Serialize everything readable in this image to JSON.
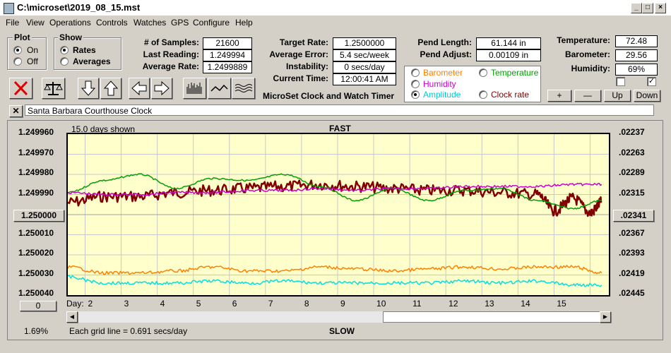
{
  "window": {
    "title": "C:\\microset\\2019_08_15.mst",
    "minimize": "_",
    "maximize": "□",
    "close": "×"
  },
  "menu": [
    "File",
    "View",
    "Operations",
    "Controls",
    "Watches",
    "GPS",
    "Configure",
    "Help"
  ],
  "plot_group": {
    "label": "Plot",
    "options": [
      "On",
      "Off"
    ],
    "selected": "On"
  },
  "show_group": {
    "label": "Show",
    "options": [
      "Rates",
      "Averages"
    ],
    "selected": "Rates"
  },
  "stats": {
    "samples_label": "# of Samples:",
    "samples": "21600",
    "last_reading_label": "Last Reading:",
    "last_reading": "1.249994",
    "avg_rate_label": "Average Rate:",
    "avg_rate": "1.2499889"
  },
  "rates": {
    "target_label": "Target Rate:",
    "target": "1.2500000",
    "avg_error_label": "Average Error:",
    "avg_error": "5.4 sec/week",
    "instability_label": "Instability:",
    "instability": "0 secs/day",
    "current_time_label": "Current Time:",
    "current_time": "12:00:41 AM"
  },
  "pendulum": {
    "length_label": "Pend Length:",
    "length": "61.144 in",
    "adjust_label": "Pend Adjust:",
    "adjust": "0.00109 in"
  },
  "environment": {
    "temperature_label": "Temperature:",
    "temperature": "72.48",
    "barometer_label": "Barometer:",
    "barometer": "29.56",
    "humidity_label": "Humidity:",
    "humidity": "69%"
  },
  "app_name": "MicroSet Clock and Watch Timer",
  "series_selector": {
    "options": [
      {
        "label": "Barometer",
        "color": "#ff8000"
      },
      {
        "label": "Temperature",
        "color": "#00a000"
      },
      {
        "label": "Humidity",
        "color": "#cc00cc"
      },
      {
        "label": "Amplitude",
        "color": "#00cccc"
      },
      {
        "label": "Clock rate",
        "color": "#800000"
      }
    ],
    "selected": "Amplitude"
  },
  "adjust_buttons": {
    "plus": "+",
    "minus": "—",
    "up": "Up",
    "down": "Down"
  },
  "clock_name": "Santa Barbara Courthouse Clock",
  "clear_button": "✕",
  "graph": {
    "days_shown": "15.0 days shown",
    "top_label": "FAST",
    "bottom_label": "SLOW",
    "left_ticks": [
      "1.249960",
      "1.249970",
      "1.249980",
      "1.249990",
      "1.250000",
      "1.250010",
      "1.250020",
      "1.250030",
      "1.250040"
    ],
    "right_ticks": [
      ".02237",
      ".02263",
      ".02289",
      ".02315",
      ".02341",
      ".02367",
      ".02393",
      ".02419",
      ".02445"
    ],
    "left_center_button": "1.250000",
    "right_center_button": ".02341",
    "day_label": "Day:",
    "day_ticks": [
      "2",
      "3",
      "4",
      "5",
      "6",
      "7",
      "8",
      "9",
      "10",
      "11",
      "12",
      "13",
      "14",
      "15"
    ],
    "zero_button": "0",
    "grid_note": "Each grid line = 0.691 secs/day",
    "percent": "1.69%"
  },
  "chart_data": {
    "type": "line",
    "x_label": "Day",
    "x_range": [
      1,
      16
    ],
    "y_left_range": [
      1.24996,
      1.25004
    ],
    "y_right_range": [
      0.02237,
      0.02445
    ],
    "series": [
      {
        "name": "Clock rate",
        "color": "#800000",
        "x": [
          1.0,
          2,
          3,
          4,
          5,
          6,
          7,
          8,
          9,
          10,
          11,
          12,
          13,
          14,
          14.5,
          15,
          15.5,
          15.8
        ],
        "y": [
          1.249994,
          1.249991,
          1.249991,
          1.249989,
          1.249988,
          1.249987,
          1.249986,
          1.249985,
          1.249986,
          1.249987,
          1.249988,
          1.249988,
          1.249989,
          1.24999,
          1.249998,
          1.249992,
          1.249999,
          1.249994
        ]
      },
      {
        "name": "Temperature",
        "color": "#00a000",
        "x": [
          1.0,
          2,
          3,
          4,
          5,
          6,
          7,
          8,
          9,
          10,
          11,
          12,
          13,
          14,
          15,
          15.8
        ],
        "y": [
          1.249989,
          1.249983,
          1.24998,
          1.249987,
          1.249982,
          1.249983,
          1.24998,
          1.249986,
          1.249993,
          1.249987,
          1.249993,
          1.249988,
          1.249987,
          1.249993,
          1.249997,
          1.249993
        ]
      },
      {
        "name": "Humidity",
        "color": "#cc00cc",
        "x": [
          1.0,
          2,
          3,
          4,
          5,
          6,
          7,
          8,
          9,
          10,
          11,
          12,
          13,
          14,
          15,
          15.8
        ],
        "y": [
          1.249989,
          1.24999,
          1.24999,
          1.249989,
          1.249989,
          1.249988,
          1.249988,
          1.249987,
          1.249988,
          1.249987,
          1.249987,
          1.249986,
          1.249986,
          1.249986,
          1.249985,
          1.249985
        ]
      },
      {
        "name": "Barometer",
        "color": "#ff8000",
        "x": [
          1.0,
          2,
          3,
          4,
          5,
          6,
          7,
          8,
          9,
          10,
          11,
          12,
          13,
          14,
          15,
          15.8
        ],
        "y": [
          1.250026,
          1.250029,
          1.250029,
          1.250028,
          1.250026,
          1.250028,
          1.250028,
          1.250026,
          1.250027,
          1.250028,
          1.250027,
          1.250026,
          1.250027,
          1.250026,
          1.250026,
          1.250029
        ]
      },
      {
        "name": "Amplitude",
        "color": "#00e0e0",
        "x": [
          1.0,
          2,
          3,
          4,
          5,
          6,
          7,
          8,
          9,
          10,
          11,
          12,
          13,
          14,
          15,
          15.8
        ],
        "y": [
          1.250031,
          1.250034,
          1.250034,
          1.250034,
          1.250033,
          1.250034,
          1.250033,
          1.250034,
          1.250034,
          1.250034,
          1.250034,
          1.250033,
          1.250034,
          1.250033,
          1.250035,
          1.250035
        ]
      }
    ],
    "grid": true
  }
}
